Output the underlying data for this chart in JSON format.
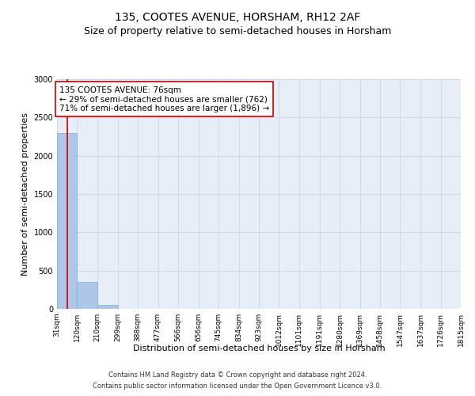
{
  "title": "135, COOTES AVENUE, HORSHAM, RH12 2AF",
  "subtitle": "Size of property relative to semi-detached houses in Horsham",
  "xlabel": "Distribution of semi-detached houses by size in Horsham",
  "ylabel": "Number of semi-detached properties",
  "footer_line1": "Contains HM Land Registry data © Crown copyright and database right 2024.",
  "footer_line2": "Contains public sector information licensed under the Open Government Licence v3.0.",
  "annotation_title": "135 COOTES AVENUE: 76sqm",
  "annotation_line2": "← 29% of semi-detached houses are smaller (762)",
  "annotation_line3": "71% of semi-detached houses are larger (1,896) →",
  "property_sqm": 76,
  "bin_edges": [
    31,
    120,
    210,
    299,
    388,
    477,
    566,
    656,
    745,
    834,
    923,
    1012,
    1101,
    1191,
    1280,
    1369,
    1458,
    1547,
    1637,
    1726,
    1815
  ],
  "bin_labels": [
    "31sqm",
    "120sqm",
    "210sqm",
    "299sqm",
    "388sqm",
    "477sqm",
    "566sqm",
    "656sqm",
    "745sqm",
    "834sqm",
    "923sqm",
    "1012sqm",
    "1101sqm",
    "1191sqm",
    "1280sqm",
    "1369sqm",
    "1458sqm",
    "1547sqm",
    "1637sqm",
    "1726sqm",
    "1815sqm"
  ],
  "bar_heights": [
    2300,
    350,
    50,
    5,
    2,
    1,
    1,
    0,
    0,
    0,
    0,
    0,
    0,
    0,
    0,
    0,
    0,
    0,
    0,
    0
  ],
  "bar_color": "#aec6e8",
  "bar_edge_color": "#7aafd4",
  "vline_x": 76,
  "vline_color": "#cc0000",
  "ylim": [
    0,
    3000
  ],
  "yticks": [
    0,
    500,
    1000,
    1500,
    2000,
    2500,
    3000
  ],
  "grid_color": "#c8d4e8",
  "background_color": "#e8eef8",
  "title_fontsize": 10,
  "subtitle_fontsize": 9,
  "axis_label_fontsize": 8,
  "tick_fontsize": 6.5,
  "annotation_fontsize": 7.5,
  "footer_fontsize": 6
}
